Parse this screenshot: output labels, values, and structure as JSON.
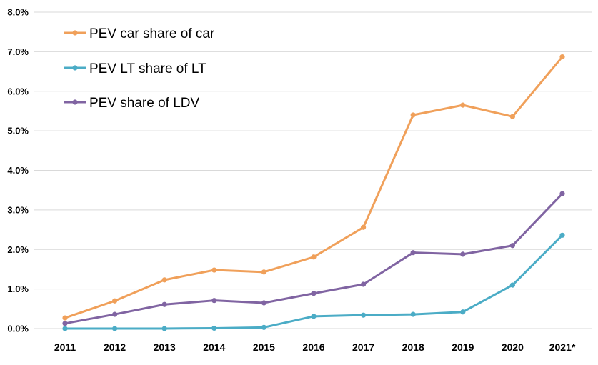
{
  "chart_data": {
    "type": "line",
    "title": "",
    "xlabel": "",
    "ylabel": "",
    "categories": [
      "2011",
      "2012",
      "2013",
      "2014",
      "2015",
      "2016",
      "2017",
      "2018",
      "2019",
      "2020",
      "2021*"
    ],
    "ylim": [
      0,
      8
    ],
    "yticks": [
      0,
      1,
      2,
      3,
      4,
      5,
      6,
      7,
      8
    ],
    "ytick_labels": [
      "0.0%",
      "1.0%",
      "2.0%",
      "3.0%",
      "4.0%",
      "5.0%",
      "6.0%",
      "7.0%",
      "8.0%"
    ],
    "grid": true,
    "legend_position": "top-left",
    "series": [
      {
        "name": "PEV car share of car",
        "color": "#F0A05A",
        "values": [
          0.27,
          0.7,
          1.23,
          1.48,
          1.43,
          1.81,
          2.56,
          5.4,
          5.65,
          5.36,
          6.87
        ]
      },
      {
        "name": "PEV LT share of LT",
        "color": "#4BACC6",
        "values": [
          0.0,
          0.0,
          0.0,
          0.01,
          0.03,
          0.31,
          0.34,
          0.36,
          0.42,
          1.1,
          2.36
        ]
      },
      {
        "name": "PEV share of LDV",
        "color": "#8064A2",
        "values": [
          0.13,
          0.36,
          0.61,
          0.71,
          0.65,
          0.89,
          1.12,
          1.92,
          1.88,
          2.1,
          3.41
        ]
      }
    ]
  }
}
